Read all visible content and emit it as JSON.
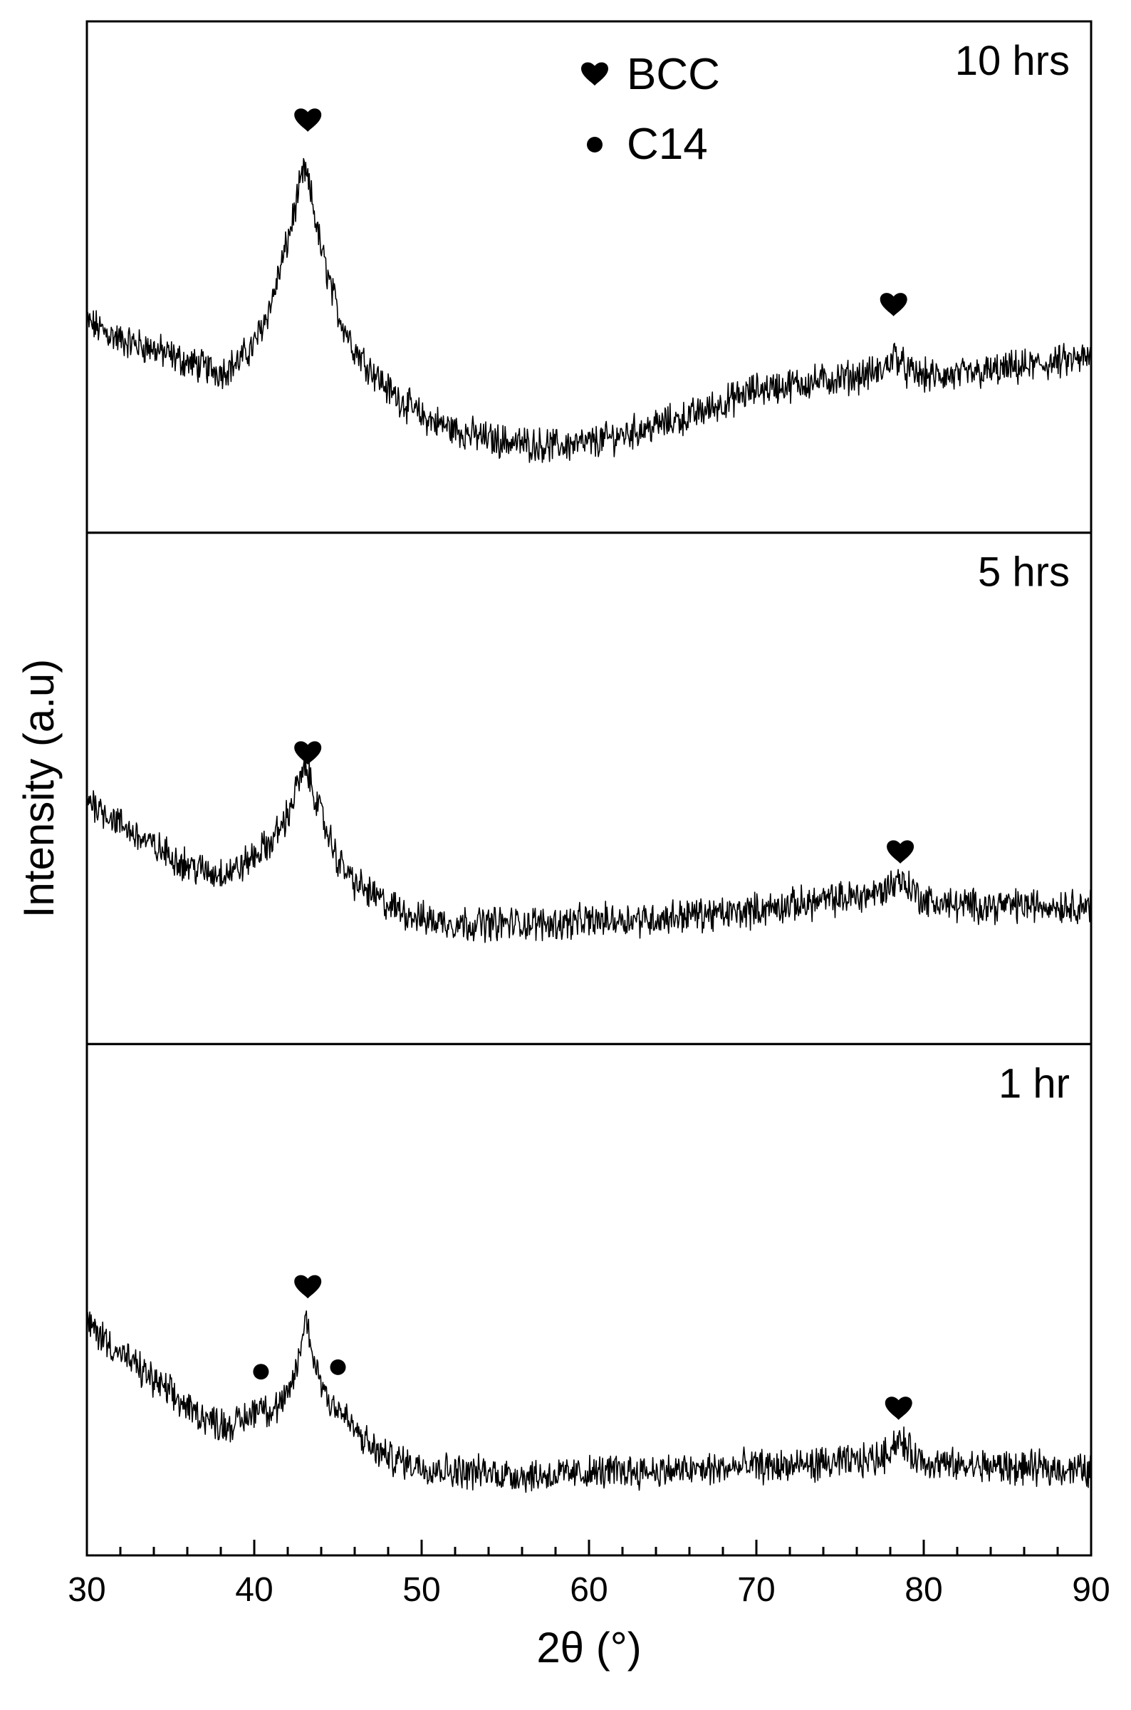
{
  "chart_data": {
    "type": "line",
    "xlabel": "2θ (°)",
    "ylabel": "Intensity (a.u)",
    "xlim": [
      30,
      90
    ],
    "x_ticks": [
      30,
      40,
      50,
      60,
      70,
      80,
      90
    ],
    "x_minor_step": 2,
    "grid": false,
    "legend": {
      "placement": "top-center",
      "entries": [
        {
          "symbol": "heart",
          "label": "BCC"
        },
        {
          "symbol": "dot",
          "label": "C14"
        }
      ]
    },
    "panels": [
      {
        "label": "10 hrs",
        "ylim": [
          0,
          100
        ],
        "points": [
          [
            30,
            40
          ],
          [
            32,
            36
          ],
          [
            34,
            34
          ],
          [
            36,
            31
          ],
          [
            38,
            29
          ],
          [
            39,
            31
          ],
          [
            40,
            35
          ],
          [
            41,
            44
          ],
          [
            42,
            58
          ],
          [
            42.6,
            68
          ],
          [
            43,
            74
          ],
          [
            43.4,
            68
          ],
          [
            44,
            56
          ],
          [
            45,
            42
          ],
          [
            46,
            34
          ],
          [
            48,
            25
          ],
          [
            50,
            19
          ],
          [
            52,
            16
          ],
          [
            54,
            14
          ],
          [
            56,
            13
          ],
          [
            58,
            12.5
          ],
          [
            60,
            13
          ],
          [
            62,
            15
          ],
          [
            64,
            17
          ],
          [
            66,
            19
          ],
          [
            68,
            22
          ],
          [
            70,
            25
          ],
          [
            72,
            26
          ],
          [
            74,
            27
          ],
          [
            76,
            28
          ],
          [
            77.5,
            29
          ],
          [
            78.3,
            33
          ],
          [
            79,
            29
          ],
          [
            80,
            28
          ],
          [
            82,
            28
          ],
          [
            84,
            29
          ],
          [
            86,
            30
          ],
          [
            88,
            31
          ],
          [
            90,
            32
          ]
        ],
        "markers": [
          {
            "symbol": "heart",
            "x": 43.2,
            "y": 85
          },
          {
            "symbol": "heart",
            "x": 78.2,
            "y": 44
          }
        ]
      },
      {
        "label": "5 hrs",
        "ylim": [
          0,
          100
        ],
        "points": [
          [
            30,
            48
          ],
          [
            32,
            42
          ],
          [
            34,
            37
          ],
          [
            36,
            33
          ],
          [
            37.5,
            31
          ],
          [
            39,
            32
          ],
          [
            40,
            35
          ],
          [
            41,
            38
          ],
          [
            42,
            44
          ],
          [
            42.7,
            52
          ],
          [
            43.1,
            54
          ],
          [
            43.5,
            50
          ],
          [
            44,
            44
          ],
          [
            45,
            34
          ],
          [
            46,
            29
          ],
          [
            48,
            24
          ],
          [
            50,
            21
          ],
          [
            52,
            20
          ],
          [
            54,
            20
          ],
          [
            56,
            20
          ],
          [
            58,
            20
          ],
          [
            60,
            20.5
          ],
          [
            62,
            21
          ],
          [
            64,
            21
          ],
          [
            66,
            22
          ],
          [
            68,
            22
          ],
          [
            70,
            23
          ],
          [
            72,
            24
          ],
          [
            74,
            25
          ],
          [
            76,
            26
          ],
          [
            77.5,
            27
          ],
          [
            78.5,
            30
          ],
          [
            79.5,
            27
          ],
          [
            80,
            25
          ],
          [
            82,
            24
          ],
          [
            84,
            24
          ],
          [
            86,
            24
          ],
          [
            88,
            24
          ],
          [
            90,
            24
          ]
        ],
        "markers": [
          {
            "symbol": "heart",
            "x": 43.2,
            "y": 58
          },
          {
            "symbol": "heart",
            "x": 78.6,
            "y": 36
          }
        ]
      },
      {
        "label": "1 hr",
        "ylim": [
          0,
          100
        ],
        "points": [
          [
            30,
            45
          ],
          [
            32,
            38
          ],
          [
            34,
            32
          ],
          [
            36,
            26
          ],
          [
            37.5,
            23
          ],
          [
            38.5,
            22
          ],
          [
            39.5,
            23.5
          ],
          [
            40.4,
            27
          ],
          [
            41,
            25
          ],
          [
            42,
            28
          ],
          [
            42.6,
            36
          ],
          [
            43.1,
            46
          ],
          [
            43.6,
            36
          ],
          [
            44.4,
            28
          ],
          [
            45,
            26
          ],
          [
            46,
            21
          ],
          [
            47,
            17
          ],
          [
            48,
            15
          ],
          [
            50,
            13
          ],
          [
            52,
            12
          ],
          [
            54,
            11.5
          ],
          [
            56,
            11
          ],
          [
            58,
            11
          ],
          [
            60,
            11.5
          ],
          [
            62,
            12
          ],
          [
            64,
            12
          ],
          [
            66,
            12
          ],
          [
            68,
            12.5
          ],
          [
            70,
            13
          ],
          [
            72,
            13
          ],
          [
            74,
            13.5
          ],
          [
            76,
            14
          ],
          [
            77.5,
            15
          ],
          [
            78.5,
            19
          ],
          [
            79.5,
            15
          ],
          [
            80,
            14
          ],
          [
            82,
            13
          ],
          [
            84,
            13
          ],
          [
            86,
            12.5
          ],
          [
            88,
            12.5
          ],
          [
            90,
            12
          ]
        ],
        "markers": [
          {
            "symbol": "heart",
            "x": 43.2,
            "y": 53
          },
          {
            "symbol": "dot",
            "x": 40.4,
            "y": 34
          },
          {
            "symbol": "dot",
            "x": 45.0,
            "y": 35
          },
          {
            "symbol": "heart",
            "x": 78.5,
            "y": 26
          }
        ]
      }
    ]
  }
}
